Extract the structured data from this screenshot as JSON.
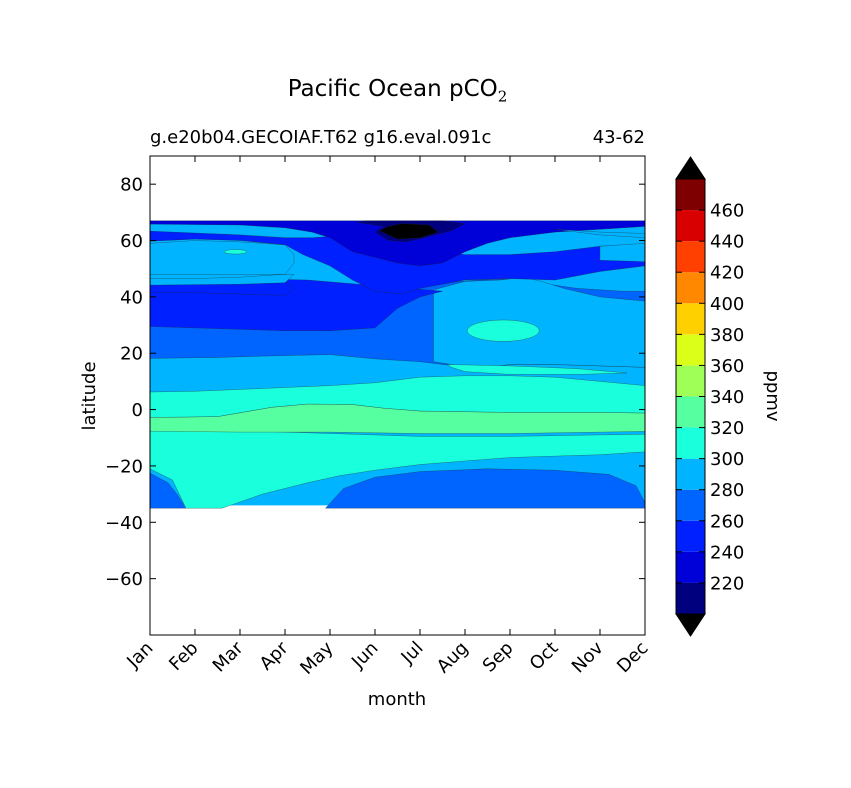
{
  "title_main": "Pacific Ocean pCO",
  "title_sub": "2",
  "subtitle_left": "g.e20b04.GECOIAF.T62 g16.eval.091c",
  "subtitle_right": "43-62",
  "chart_data": {
    "type": "heatmap",
    "xlabel": "month",
    "ylabel": "latitude",
    "x_categories": [
      "Jan",
      "Feb",
      "Mar",
      "Apr",
      "May",
      "Jun",
      "Jul",
      "Aug",
      "Sep",
      "Oct",
      "Nov",
      "Dec"
    ],
    "ylim": [
      -80,
      90
    ],
    "y_ticks": [
      80,
      60,
      40,
      20,
      0,
      -20,
      -40,
      -60
    ],
    "y_tick_labels": [
      "80",
      "60",
      "40",
      "20",
      "0",
      "−20",
      "−40",
      "−60"
    ],
    "data_lat_range": [
      -34,
      67
    ],
    "colorbar": {
      "label": "ppmv",
      "levels": [
        200,
        220,
        240,
        260,
        280,
        300,
        320,
        340,
        360,
        380,
        400,
        420,
        440,
        460,
        480
      ],
      "tick_labels": [
        "220",
        "240",
        "260",
        "280",
        "300",
        "320",
        "340",
        "360",
        "380",
        "400",
        "420",
        "440",
        "460"
      ],
      "colors": [
        "#00007f",
        "#0000d8",
        "#0020ff",
        "#0064ff",
        "#00b4ff",
        "#1affdc",
        "#56ff9f",
        "#9fff56",
        "#dcff1a",
        "#ffd000",
        "#ff8800",
        "#ff4000",
        "#d80000",
        "#7f0000"
      ],
      "extend_low_color": "#000000",
      "extend_high_color": "#000000"
    },
    "contour_bands": [
      {
        "from_lat": 60,
        "to_lat": 67,
        "value_ppmv": "220-240",
        "note": "Jun high-latitude minimum below 220"
      },
      {
        "from_lat": 40,
        "to_lat": 60,
        "value_ppmv": "240-300"
      },
      {
        "from_lat": 18,
        "to_lat": 40,
        "value_ppmv": "260-300"
      },
      {
        "from_lat": 6,
        "to_lat": 18,
        "value_ppmv": "280-300"
      },
      {
        "from_lat": -3,
        "to_lat": 6,
        "value_ppmv": "300-320"
      },
      {
        "from_lat": -8,
        "to_lat": -3,
        "value_ppmv": "320-340"
      },
      {
        "from_lat": -20,
        "to_lat": -8,
        "value_ppmv": "300-320"
      },
      {
        "from_lat": -34,
        "to_lat": -20,
        "value_ppmv": "260-300"
      }
    ]
  }
}
